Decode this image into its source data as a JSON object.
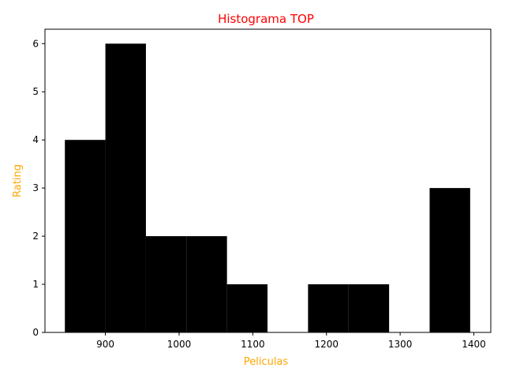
{
  "chart_data": {
    "type": "bar",
    "title": "Histograma TOP",
    "xlabel": "Peliculas",
    "ylabel": "Rating",
    "bins": [
      {
        "start": 845,
        "end": 900,
        "value": 4
      },
      {
        "start": 900,
        "end": 955,
        "value": 6
      },
      {
        "start": 955,
        "end": 1010,
        "value": 2
      },
      {
        "start": 1010,
        "end": 1065,
        "value": 2
      },
      {
        "start": 1065,
        "end": 1120,
        "value": 1
      },
      {
        "start": 1120,
        "end": 1175,
        "value": 0
      },
      {
        "start": 1175,
        "end": 1230,
        "value": 1
      },
      {
        "start": 1230,
        "end": 1285,
        "value": 1
      },
      {
        "start": 1285,
        "end": 1340,
        "value": 0
      },
      {
        "start": 1340,
        "end": 1395,
        "value": 3
      }
    ],
    "xlim": [
      818,
      1423
    ],
    "ylim": [
      0,
      6.3
    ],
    "xticks": [
      "900",
      "1000",
      "1100",
      "1200",
      "1300",
      "1400"
    ],
    "xtick_values": [
      900,
      1000,
      1100,
      1200,
      1300,
      1400
    ],
    "yticks": [
      "0",
      "1",
      "2",
      "3",
      "4",
      "5",
      "6"
    ],
    "ytick_values": [
      0,
      1,
      2,
      3,
      4,
      5,
      6
    ],
    "grid": false,
    "colors": {
      "bars": "#000000",
      "title": "#ff0000",
      "axis_labels": "#ffa500"
    }
  }
}
